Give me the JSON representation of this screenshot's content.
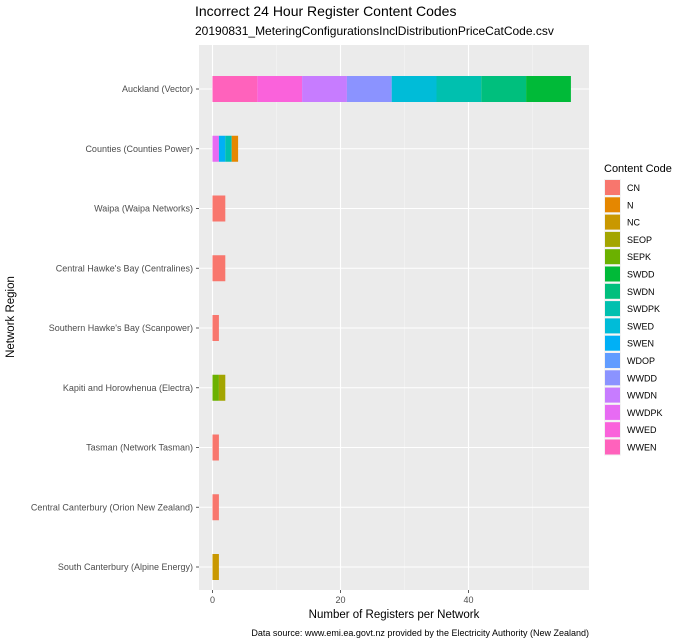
{
  "chart_data": {
    "type": "bar",
    "orientation": "horizontal",
    "stacked": true,
    "title": "Incorrect 24 Hour Register Content Codes",
    "subtitle": "20190831_MeteringConfigurationsInclDistributionPriceCatCode.csv",
    "xlabel": "Number of Registers per Network",
    "ylabel": "Network Region",
    "caption": "Data source: www.emi.ea.govt.nz provided by the Electricity Authority (New Zealand)",
    "xlim": [
      0,
      58
    ],
    "xticks": [
      0,
      20,
      40
    ],
    "grid": true,
    "legend_position": "right",
    "legend_title": "Content Code",
    "categories": [
      "Auckland (Vector)",
      "Counties (Counties Power)",
      "Waipa (Waipa Networks)",
      "Central Hawke's Bay (Centralines)",
      "Southern Hawke's Bay (Scanpower)",
      "Kapiti and Horowhenua (Electra)",
      "Tasman (Network Tasman)",
      "Central Canterbury (Orion New Zealand)",
      "South Canterbury (Alpine Energy)"
    ],
    "series": [
      {
        "name": "CN",
        "color": "#F8766D",
        "values": [
          0,
          0,
          2,
          2,
          1,
          0,
          1,
          1,
          0
        ]
      },
      {
        "name": "N",
        "color": "#E58700",
        "values": [
          0,
          1,
          0,
          0,
          0,
          0,
          0,
          0,
          0
        ]
      },
      {
        "name": "NC",
        "color": "#C99800",
        "values": [
          0,
          0,
          0,
          0,
          0,
          0,
          0,
          0,
          1
        ]
      },
      {
        "name": "SEOP",
        "color": "#A3A500",
        "values": [
          0,
          0,
          0,
          0,
          0,
          1,
          0,
          0,
          0
        ]
      },
      {
        "name": "SEPK",
        "color": "#6BB100",
        "values": [
          0,
          0,
          0,
          0,
          0,
          1,
          0,
          0,
          0
        ]
      },
      {
        "name": "SWDD",
        "color": "#00BA38",
        "values": [
          7,
          0,
          0,
          0,
          0,
          0,
          0,
          0,
          0
        ]
      },
      {
        "name": "SWDN",
        "color": "#00BF7D",
        "values": [
          7,
          0,
          0,
          0,
          0,
          0,
          0,
          0,
          0
        ]
      },
      {
        "name": "SWDPK",
        "color": "#00C0AF",
        "values": [
          7,
          1,
          0,
          0,
          0,
          0,
          0,
          0,
          0
        ]
      },
      {
        "name": "SWED",
        "color": "#00BCD8",
        "values": [
          7,
          0,
          0,
          0,
          0,
          0,
          0,
          0,
          0
        ]
      },
      {
        "name": "SWEN",
        "color": "#00B0F6",
        "values": [
          0,
          1,
          0,
          0,
          0,
          0,
          0,
          0,
          0
        ]
      },
      {
        "name": "WDOP",
        "color": "#619CFF",
        "values": [
          0,
          0,
          0,
          0,
          0,
          0,
          0,
          0,
          0
        ]
      },
      {
        "name": "WWDD",
        "color": "#8B93FF",
        "values": [
          7,
          0,
          0,
          0,
          0,
          0,
          0,
          0,
          0
        ]
      },
      {
        "name": "WWDN",
        "color": "#C77CFF",
        "values": [
          7,
          0,
          0,
          0,
          0,
          0,
          0,
          0,
          0
        ]
      },
      {
        "name": "WWDPK",
        "color": "#E76BF3",
        "values": [
          0,
          1,
          0,
          0,
          0,
          0,
          0,
          0,
          0
        ]
      },
      {
        "name": "WWED",
        "color": "#FA62DB",
        "values": [
          7,
          0,
          0,
          0,
          0,
          0,
          0,
          0,
          0
        ]
      },
      {
        "name": "WWEN",
        "color": "#FF62BC",
        "values": [
          7,
          0,
          0,
          0,
          0,
          0,
          0,
          0,
          0
        ]
      }
    ]
  }
}
